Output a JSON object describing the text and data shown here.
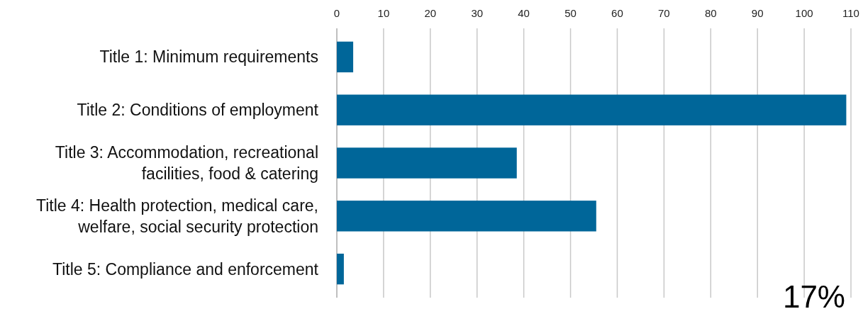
{
  "chart_data": {
    "type": "bar",
    "orientation": "horizontal",
    "categories": [
      "Title 1: Minimum requirements",
      "Title 2: Conditions of employment",
      "Title 3: Accommodation, recreational facilities, food & catering",
      "Title 4: Health protection, medical care, welfare, social security protection",
      "Title 5: Compliance and enforcement"
    ],
    "values": [
      3.5,
      109,
      38.5,
      55.5,
      1.5
    ],
    "color": "#006699",
    "xlim": [
      0,
      110
    ],
    "xticks": [
      0,
      10,
      20,
      30,
      40,
      50,
      60,
      70,
      80,
      90,
      100,
      110
    ],
    "grid": "x",
    "annotations": [
      "17%"
    ]
  }
}
